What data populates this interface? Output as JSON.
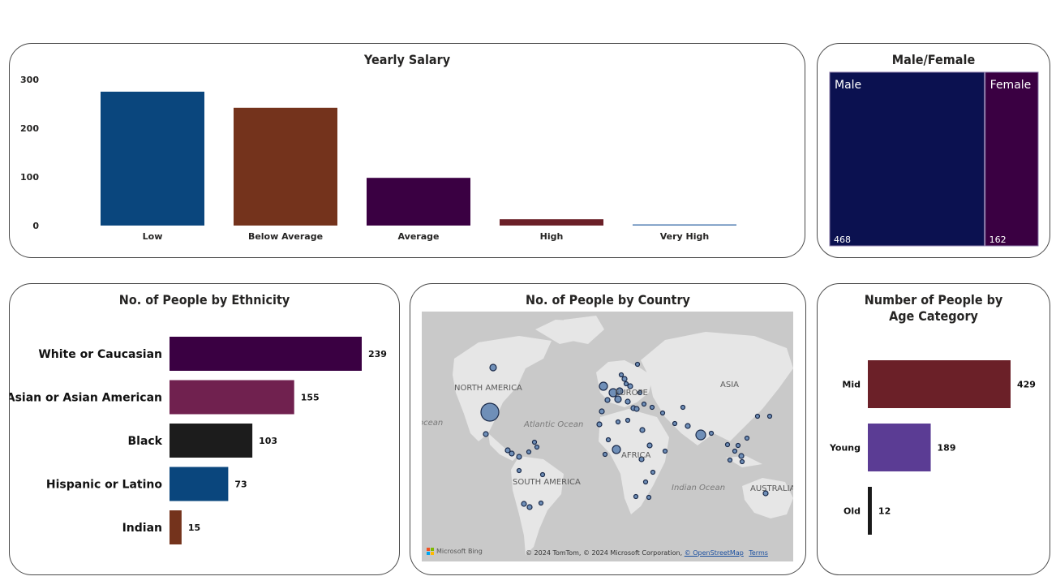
{
  "salary": {
    "title": "Yearly Salary",
    "chart_data": {
      "type": "bar",
      "categories": [
        "Low",
        "Below Average",
        "Average",
        "High",
        "Very High"
      ],
      "values": [
        275,
        242,
        98,
        13,
        1
      ],
      "ylim": [
        0,
        300
      ],
      "yticks": [
        0,
        100,
        200,
        300
      ],
      "colors": [
        "#0a467d",
        "#74331c",
        "#3a0042",
        "#6b2028",
        "#4b7ab0"
      ],
      "grid": false
    }
  },
  "gender": {
    "title": "Male/Female",
    "chart_data": {
      "type": "treemap",
      "categories": [
        "Male",
        "Female"
      ],
      "values": [
        468,
        162
      ],
      "colors": [
        "#0b1150",
        "#3a0042"
      ]
    }
  },
  "ethnicity": {
    "title": "No. of People by Ethnicity",
    "chart_data": {
      "type": "bar",
      "orientation": "horizontal",
      "categories": [
        "White or Caucasian",
        "Asian or Asian American",
        "Black",
        "Hispanic or Latino",
        "Indian"
      ],
      "values": [
        239,
        155,
        103,
        73,
        15
      ],
      "colors": [
        "#3a0042",
        "#70214f",
        "#1c1c1c",
        "#0a467d",
        "#74331c"
      ],
      "xmax": 239
    }
  },
  "country": {
    "title": "No. of People by Country",
    "labels": {
      "north_america": "NORTH AMERICA",
      "europe": "EUROPE",
      "asia": "ASIA",
      "africa": "AFRICA",
      "south_america": "SOUTH AMERICA",
      "australia": "AUSTRALIA",
      "atlantic": "Atlantic Ocean",
      "indian": "Indian Ocean",
      "pacific": "ocean"
    },
    "footer": {
      "bing": "Microsoft Bing",
      "copyright": "© 2024 TomTom, © 2024 Microsoft Corporation, ",
      "osm": "© OpenStreetMap",
      "terms": "Terms"
    },
    "bubble_color": "#6f8fb8"
  },
  "age": {
    "title": "Number of People by Age Category",
    "chart_data": {
      "type": "bar",
      "orientation": "horizontal",
      "categories": [
        "Mid",
        "Young",
        "Old"
      ],
      "values": [
        429,
        189,
        12
      ],
      "colors": [
        "#6b2028",
        "#5b3c94",
        "#1a1a1a"
      ],
      "xmax": 429
    }
  }
}
